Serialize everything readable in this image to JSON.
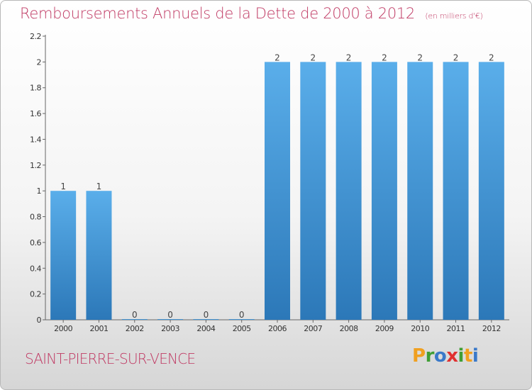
{
  "title": "Remboursements Annuels de la Dette de 2000 à 2012",
  "unit_note": "(en milliers d'€)",
  "commune": "SAINT-PIERRE-SUR-VENCE",
  "logo": {
    "letters": [
      "P",
      "r",
      "o",
      "x",
      "i",
      "t",
      "i"
    ],
    "colors": [
      "#f0a020",
      "#3f9e35",
      "#3a79c9",
      "#e03030",
      "#3f9e35",
      "#f0a020",
      "#3a79c9"
    ]
  },
  "colors": {
    "accent": "#c03a64",
    "bar_top": "#5aaeea",
    "bar_bottom": "#2c78b8"
  },
  "chart_data": {
    "type": "bar",
    "title": "Remboursements Annuels de la Dette de 2000 à 2012",
    "categories": [
      "2000",
      "2001",
      "2002",
      "2003",
      "2004",
      "2005",
      "2006",
      "2007",
      "2008",
      "2009",
      "2010",
      "2011",
      "2012"
    ],
    "values": [
      1,
      1,
      0,
      0,
      0,
      0,
      2,
      2,
      2,
      2,
      2,
      2,
      2
    ],
    "data_labels": [
      "1",
      "1",
      "0",
      "0",
      "0",
      "0",
      "2",
      "2",
      "2",
      "2",
      "2",
      "2",
      "2"
    ],
    "xlabel": "",
    "ylabel": "",
    "ylim": [
      0,
      2.2
    ],
    "yticks": [
      0,
      0.2,
      0.4,
      0.6,
      0.8,
      1,
      1.2,
      1.4,
      1.6,
      1.8,
      2,
      2.2
    ],
    "ytick_labels": [
      "0",
      "0.2",
      "0.4",
      "0.6",
      "0.8",
      "1",
      "1.2",
      "1.4",
      "1.6",
      "1.8",
      "2",
      "2.2"
    ],
    "grid": false
  }
}
